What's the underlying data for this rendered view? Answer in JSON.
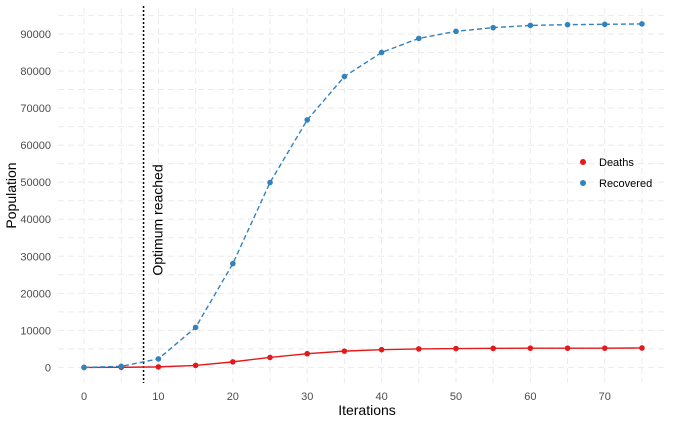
{
  "chart_data": {
    "type": "line",
    "xlabel": "Iterations",
    "ylabel": "Population",
    "xlim": [
      -3.5,
      78.5
    ],
    "ylim": [
      -4200,
      97000
    ],
    "x_ticks": [
      0,
      10,
      20,
      30,
      40,
      50,
      60,
      70
    ],
    "y_ticks": [
      0,
      10000,
      20000,
      30000,
      40000,
      50000,
      60000,
      70000,
      80000,
      90000
    ],
    "grid": true,
    "legend_position": "right",
    "x": [
      0,
      5,
      10,
      15,
      20,
      25,
      30,
      35,
      40,
      45,
      50,
      55,
      60,
      65,
      70,
      75
    ],
    "series": [
      {
        "name": "Deaths",
        "color": "#e31a1c",
        "line_style": "solid",
        "values": [
          0,
          30,
          150,
          550,
          1500,
          2700,
          3700,
          4400,
          4800,
          5000,
          5100,
          5150,
          5200,
          5200,
          5200,
          5250
        ]
      },
      {
        "name": "Recovered",
        "color": "#3182bd",
        "line_style": "dashed",
        "values": [
          0,
          300,
          2300,
          10800,
          28000,
          49900,
          66800,
          78500,
          85000,
          88800,
          90700,
          91700,
          92300,
          92500,
          92600,
          92700
        ]
      }
    ],
    "annotations": [
      {
        "type": "vline",
        "x": 8,
        "style": "dotted",
        "color": "#000000",
        "label": "Optimum reached"
      }
    ]
  }
}
